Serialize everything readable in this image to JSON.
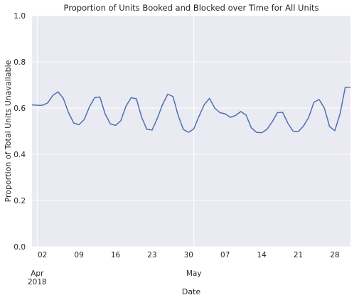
{
  "chart_data": {
    "type": "line",
    "title": "Proportion of Units Booked and Blocked over Time for All Units",
    "xlabel": "Date",
    "ylabel": "Proportion of Total Units Unavailable",
    "ylim": [
      0,
      1.0
    ],
    "yticks": [
      "0.0",
      "0.2",
      "0.4",
      "0.6",
      "0.8",
      "1.0"
    ],
    "xlim": [
      "2018-03-31",
      "2018-05-31"
    ],
    "xticks": [
      {
        "date": "2018-04-02",
        "label": "02"
      },
      {
        "date": "2018-04-09",
        "label": "09"
      },
      {
        "date": "2018-04-16",
        "label": "16"
      },
      {
        "date": "2018-04-23",
        "label": "23"
      },
      {
        "date": "2018-04-30",
        "label": "30"
      },
      {
        "date": "2018-05-07",
        "label": "07"
      },
      {
        "date": "2018-05-14",
        "label": "14"
      },
      {
        "date": "2018-05-21",
        "label": "21"
      },
      {
        "date": "2018-05-28",
        "label": "28"
      }
    ],
    "month_labels": [
      {
        "date": "2018-04-01",
        "month": "Apr",
        "year": "2018"
      },
      {
        "date": "2018-05-01",
        "month": "May",
        "year": ""
      }
    ],
    "grid": true,
    "line_color": "#4c72b0",
    "background_color": "#eaeaf2",
    "series": [
      {
        "x": [
          "2018-03-31",
          "2018-04-01",
          "2018-04-02",
          "2018-04-03",
          "2018-04-04",
          "2018-04-05",
          "2018-04-06",
          "2018-04-07",
          "2018-04-08",
          "2018-04-09",
          "2018-04-10",
          "2018-04-11",
          "2018-04-12",
          "2018-04-13",
          "2018-04-14",
          "2018-04-15",
          "2018-04-16",
          "2018-04-17",
          "2018-04-18",
          "2018-04-19",
          "2018-04-20",
          "2018-04-21",
          "2018-04-22",
          "2018-04-23",
          "2018-04-24",
          "2018-04-25",
          "2018-04-26",
          "2018-04-27",
          "2018-04-28",
          "2018-04-29",
          "2018-04-30",
          "2018-05-01",
          "2018-05-02",
          "2018-05-03",
          "2018-05-04",
          "2018-05-05",
          "2018-05-06",
          "2018-05-07",
          "2018-05-08",
          "2018-05-09",
          "2018-05-10",
          "2018-05-11",
          "2018-05-12",
          "2018-05-13",
          "2018-05-14",
          "2018-05-15",
          "2018-05-16",
          "2018-05-17",
          "2018-05-18",
          "2018-05-19",
          "2018-05-20",
          "2018-05-21",
          "2018-05-22",
          "2018-05-23",
          "2018-05-24",
          "2018-05-25",
          "2018-05-26",
          "2018-05-27",
          "2018-05-28",
          "2018-05-29",
          "2018-05-30",
          "2018-05-31"
        ],
        "values": [
          0.614,
          0.612,
          0.612,
          0.622,
          0.655,
          0.67,
          0.642,
          0.58,
          0.535,
          0.528,
          0.55,
          0.605,
          0.645,
          0.648,
          0.575,
          0.532,
          0.525,
          0.545,
          0.608,
          0.645,
          0.64,
          0.56,
          0.508,
          0.505,
          0.555,
          0.615,
          0.66,
          0.65,
          0.568,
          0.507,
          0.495,
          0.51,
          0.565,
          0.615,
          0.642,
          0.6,
          0.58,
          0.575,
          0.56,
          0.568,
          0.585,
          0.57,
          0.515,
          0.495,
          0.493,
          0.508,
          0.54,
          0.58,
          0.582,
          0.535,
          0.5,
          0.498,
          0.522,
          0.56,
          0.625,
          0.637,
          0.6,
          0.52,
          0.502,
          0.575,
          0.69,
          0.69
        ]
      }
    ]
  }
}
